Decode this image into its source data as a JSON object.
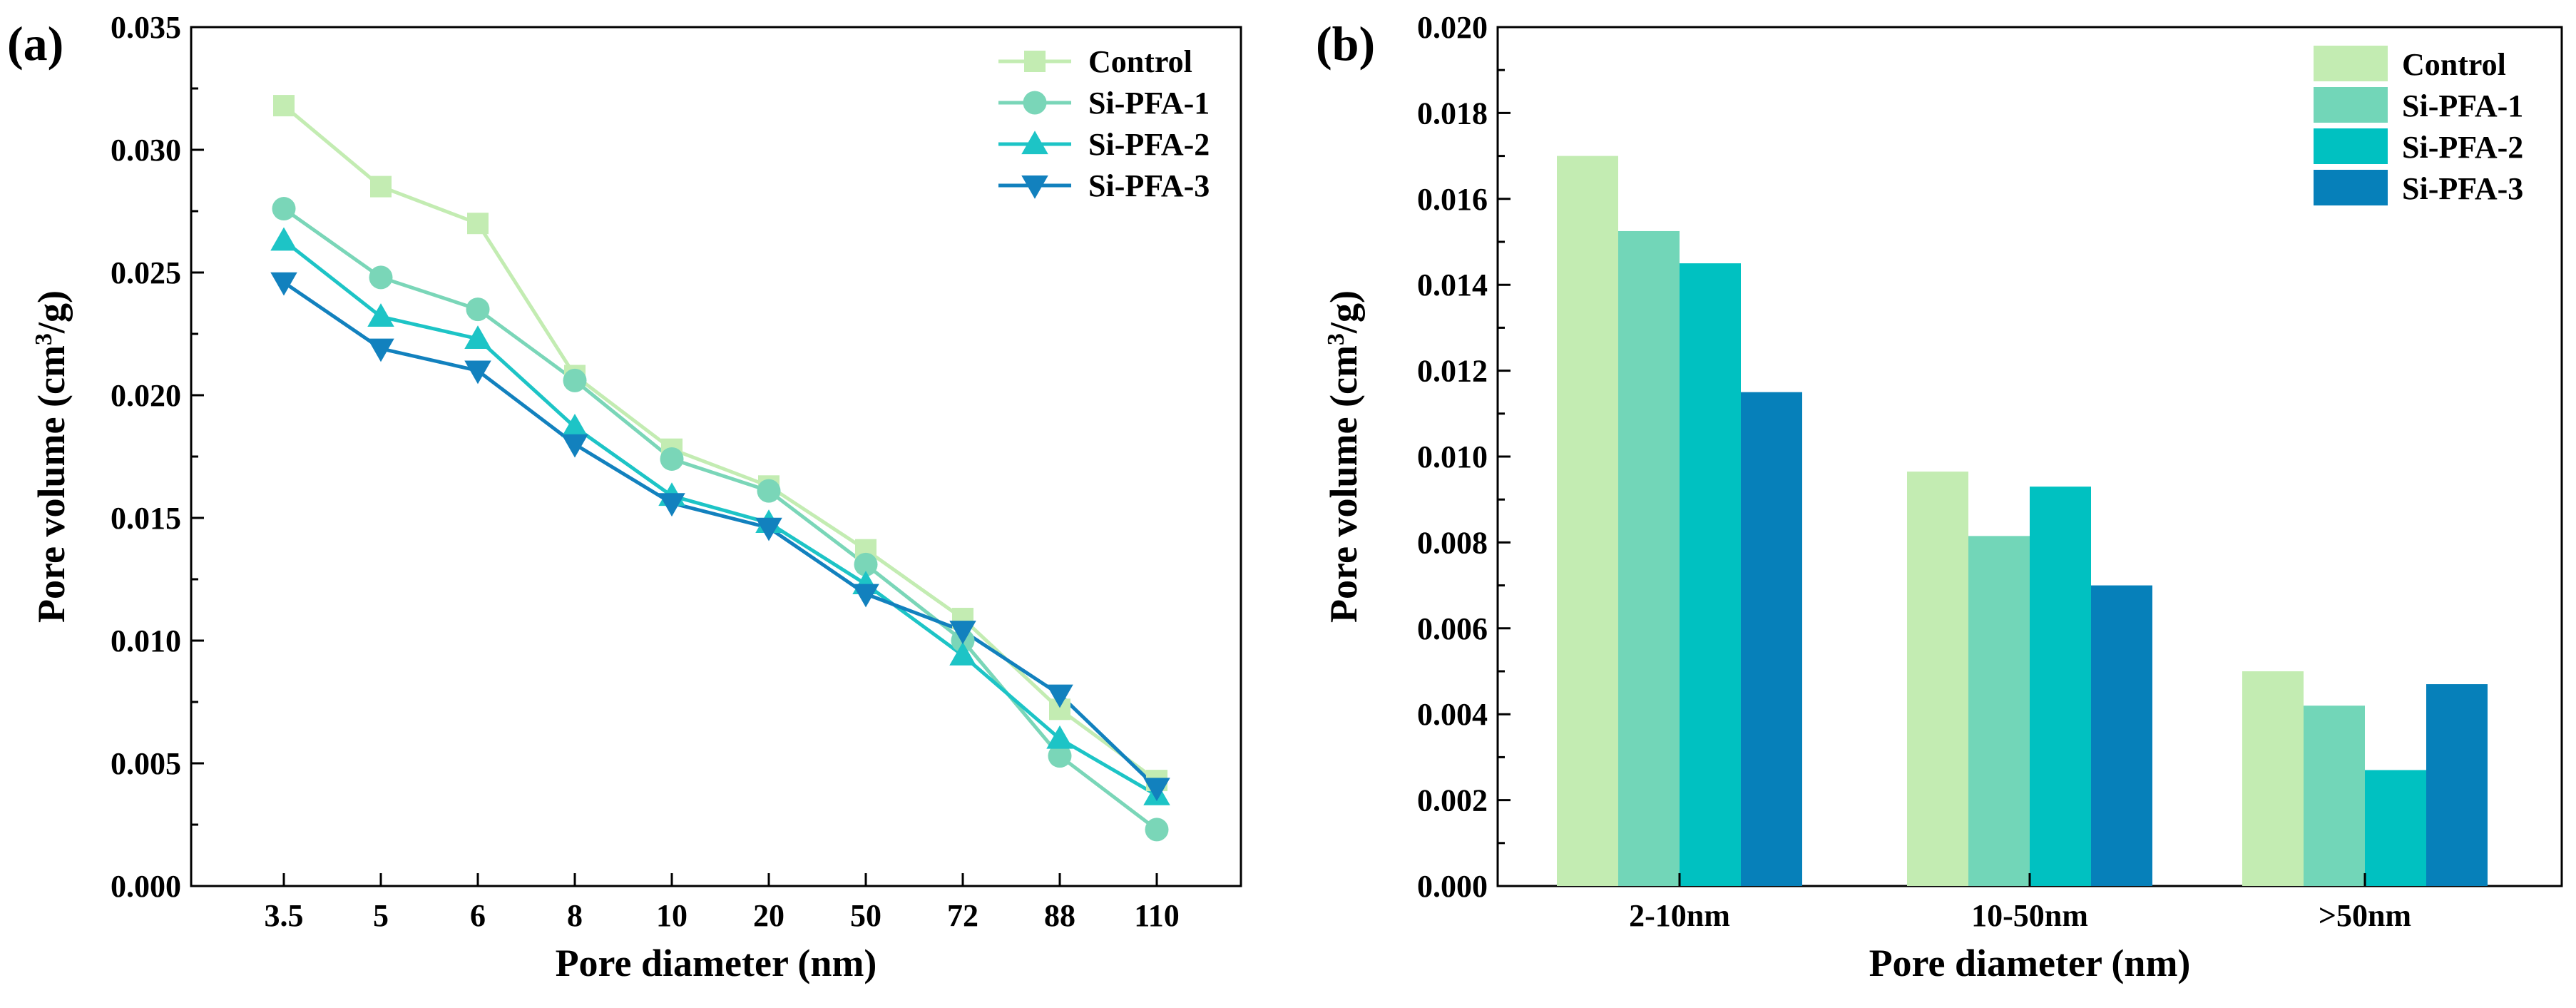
{
  "chart_data": [
    {
      "panel_label": "(a)",
      "type": "line",
      "categories": [
        "3.5",
        "5",
        "6",
        "8",
        "10",
        "20",
        "50",
        "72",
        "88",
        "110"
      ],
      "series": [
        {
          "name": "Control",
          "marker": "square",
          "color": "#c3ecb2",
          "values": [
            0.0318,
            0.0285,
            0.027,
            0.0208,
            0.0178,
            0.0163,
            0.0137,
            0.0109,
            0.0072,
            0.0043
          ]
        },
        {
          "name": "Si-PFA-1",
          "marker": "circle",
          "color": "#7ad6b8",
          "values": [
            0.0276,
            0.0248,
            0.0235,
            0.0206,
            0.0174,
            0.0161,
            0.0131,
            0.01,
            0.0053,
            0.0023
          ]
        },
        {
          "name": "Si-PFA-2",
          "marker": "triangle-up",
          "color": "#1dc4c6",
          "values": [
            0.0263,
            0.0232,
            0.0223,
            0.0187,
            0.0159,
            0.0148,
            0.0123,
            0.0094,
            0.006,
            0.0037
          ]
        },
        {
          "name": "Si-PFA-3",
          "marker": "triangle-down",
          "color": "#1281be",
          "values": [
            0.0246,
            0.0219,
            0.021,
            0.018,
            0.0156,
            0.0146,
            0.0119,
            0.0104,
            0.0078,
            0.004
          ]
        }
      ],
      "yticks": [
        "0.000",
        "0.005",
        "0.010",
        "0.015",
        "0.020",
        "0.025",
        "0.030",
        "0.035"
      ],
      "ylim": [
        0,
        0.035
      ],
      "xlabel": "Pore diameter (nm)",
      "ylabel_main": "Pore volume (cm",
      "ylabel_sup": "3",
      "ylabel_end": "/g)",
      "legend_position": "top-right",
      "grid": false
    },
    {
      "panel_label": "(b)",
      "type": "bar",
      "categories": [
        "2-10nm",
        "10-50nm",
        ">50nm"
      ],
      "series": [
        {
          "name": "Control",
          "color": "#c3ecb2",
          "values": [
            0.017,
            0.00965,
            0.005
          ]
        },
        {
          "name": "Si-PFA-1",
          "color": "#72d6b8",
          "values": [
            0.01525,
            0.00815,
            0.0042
          ]
        },
        {
          "name": "Si-PFA-2",
          "color": "#00c1c1",
          "values": [
            0.0145,
            0.0093,
            0.0027
          ]
        },
        {
          "name": "Si-PFA-3",
          "color": "#0680ba",
          "values": [
            0.0115,
            0.007,
            0.0047
          ]
        }
      ],
      "yticks": [
        "0.000",
        "0.002",
        "0.004",
        "0.006",
        "0.008",
        "0.010",
        "0.012",
        "0.014",
        "0.016",
        "0.018",
        "0.020"
      ],
      "ylim": [
        0,
        0.02
      ],
      "xlabel": "Pore diameter (nm)",
      "ylabel_main": "Pore volume (cm",
      "ylabel_sup": "3",
      "ylabel_end": "/g)",
      "legend_position": "top-right",
      "grid": false
    }
  ]
}
